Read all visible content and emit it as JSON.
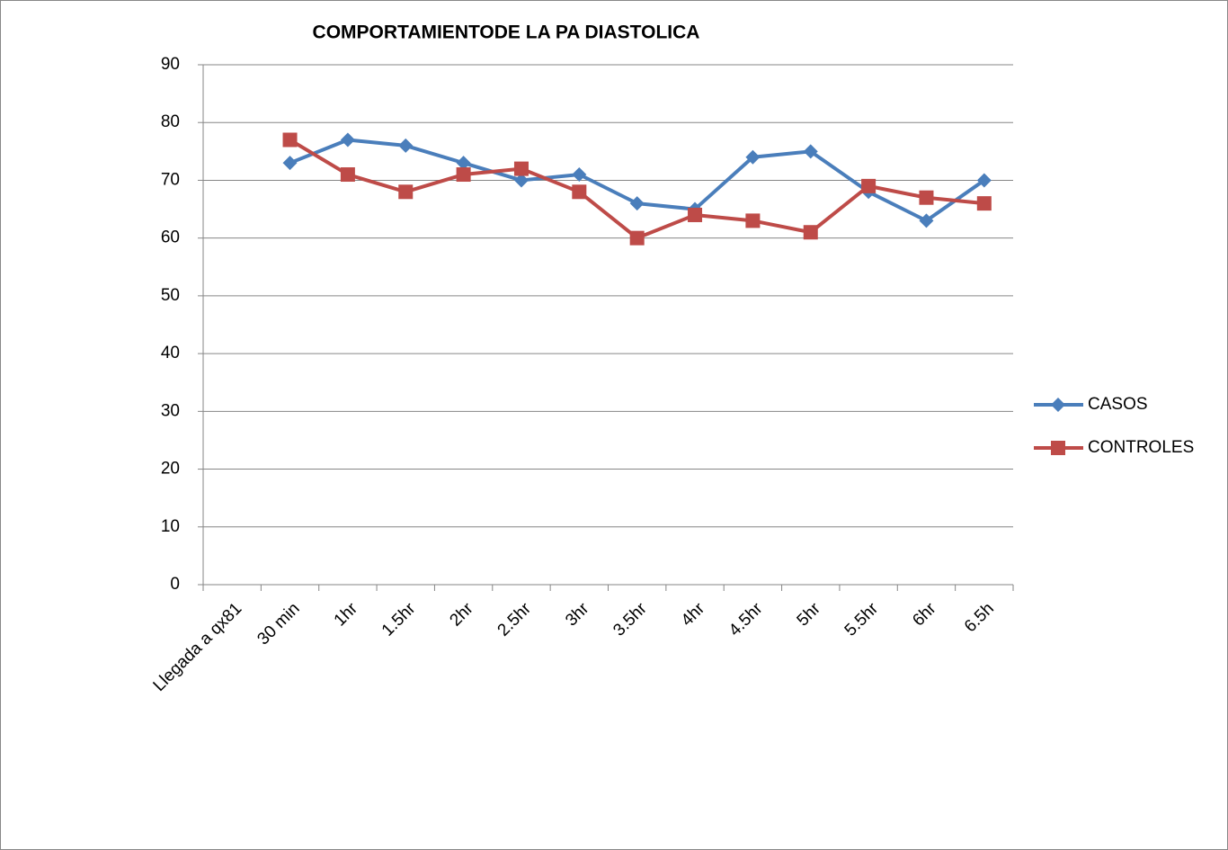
{
  "chart_data": {
    "type": "line",
    "title": "COMPORTAMIENTODE LA PA DIASTOLICA",
    "categories": [
      "Llegada a qx81",
      "30 min",
      "1hr",
      "1.5hr",
      "2hr",
      "2.5hr",
      "3hr",
      "3.5hr",
      "4hr",
      "4.5hr",
      "5hr",
      "5.5hr",
      "6hr",
      "6.5h"
    ],
    "series": [
      {
        "name": "CASOS",
        "color": "#4a7ebb",
        "marker": "diamond",
        "values": [
          null,
          73,
          77,
          76,
          73,
          70,
          71,
          66,
          65,
          74,
          75,
          68,
          63,
          70
        ]
      },
      {
        "name": "CONTROLES",
        "color": "#be4b48",
        "marker": "square",
        "values": [
          null,
          77,
          71,
          68,
          71,
          72,
          68,
          60,
          64,
          63,
          61,
          69,
          67,
          66
        ]
      }
    ],
    "ylim": [
      0,
      90
    ],
    "yticks": [
      0,
      10,
      20,
      30,
      40,
      50,
      60,
      70,
      80,
      90
    ],
    "grid": true,
    "legend": "right"
  }
}
